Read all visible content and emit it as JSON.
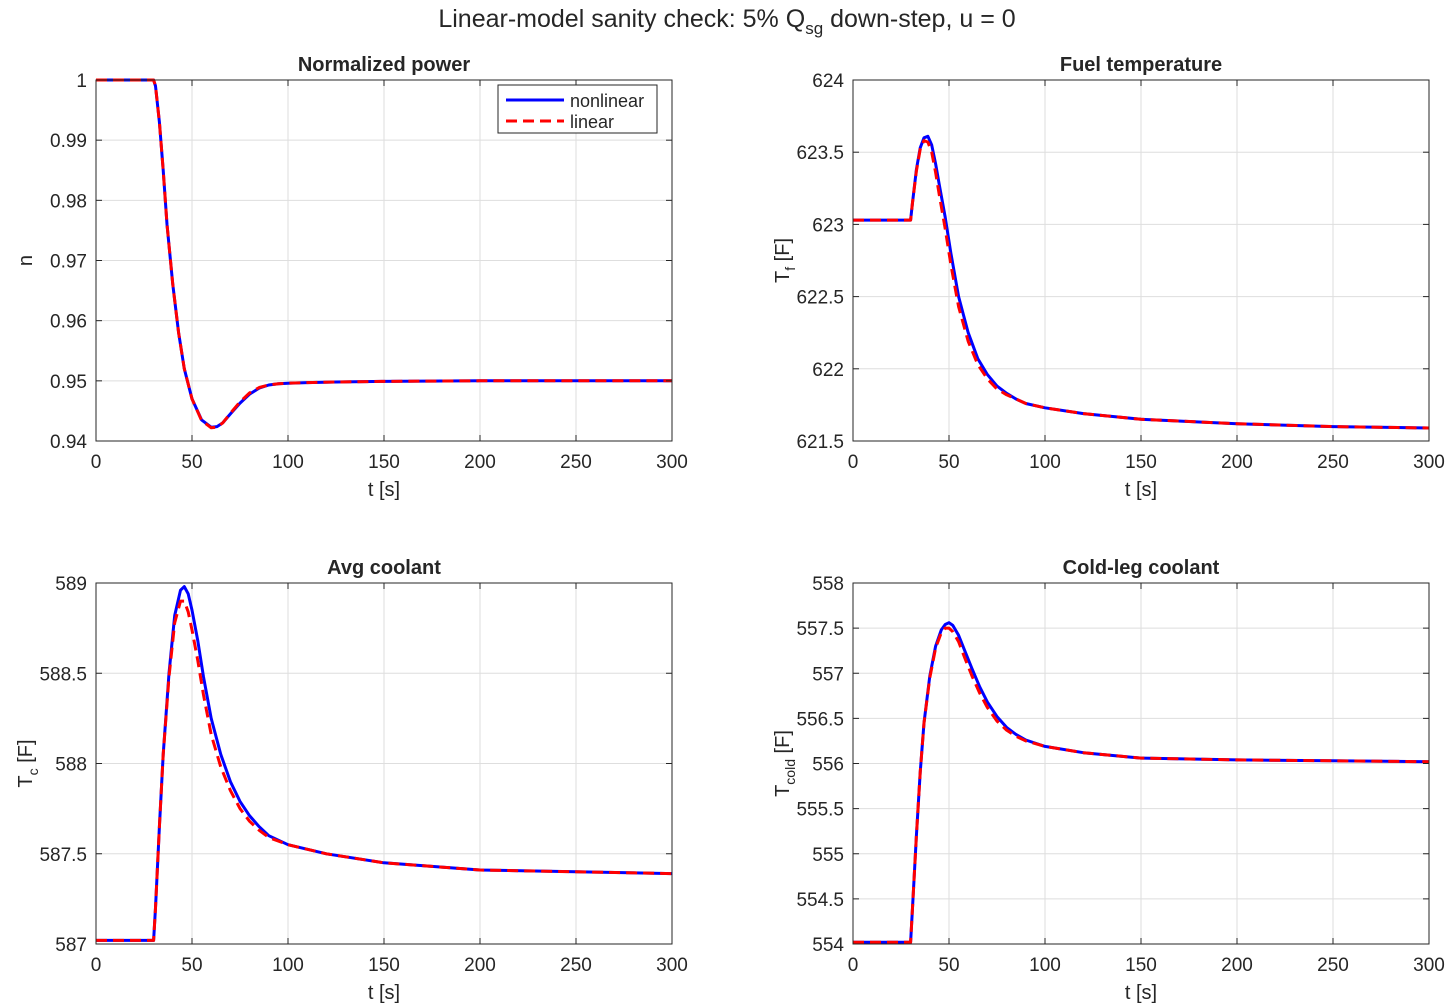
{
  "figure": {
    "title_main": "Linear-model sanity check: 5% Q",
    "title_sub": "sg",
    "title_tail": " down-step, u = 0"
  },
  "colors": {
    "nonlinear": "#0000ff",
    "linear": "#ff0000",
    "grid": "#dedede",
    "axes": "#262626"
  },
  "chart_data": [
    {
      "id": "power",
      "type": "line",
      "title": "Normalized power",
      "xlabel": "t [s]",
      "ylabel": {
        "base": "n",
        "sub": "",
        "unit": ""
      },
      "xlim": [
        0,
        300
      ],
      "ylim": [
        0.94,
        1.0
      ],
      "xticks": [
        0,
        50,
        100,
        150,
        200,
        250,
        300
      ],
      "yticks": [
        0.94,
        0.95,
        0.96,
        0.97,
        0.98,
        0.99,
        1.0
      ],
      "ytick_labels": [
        "0.94",
        "0.95",
        "0.96",
        "0.97",
        "0.98",
        "0.99",
        "1"
      ],
      "grid": true,
      "legend": {
        "position": "top-right",
        "entries": [
          "nonlinear",
          "linear"
        ]
      },
      "series": [
        {
          "name": "nonlinear",
          "style": "solid",
          "x": [
            0,
            30,
            31,
            33,
            35,
            37,
            40,
            43,
            46,
            50,
            55,
            60,
            63,
            66,
            70,
            75,
            80,
            85,
            90,
            95,
            100,
            110,
            125,
            150,
            200,
            250,
            300
          ],
          "y": [
            1.0,
            1.0,
            0.999,
            0.993,
            0.985,
            0.976,
            0.966,
            0.958,
            0.952,
            0.947,
            0.9435,
            0.9423,
            0.9424,
            0.943,
            0.9445,
            0.9463,
            0.9478,
            0.9488,
            0.9493,
            0.9495,
            0.9496,
            0.9497,
            0.9498,
            0.9499,
            0.95,
            0.95,
            0.95
          ]
        },
        {
          "name": "linear",
          "style": "dashed",
          "x": [
            0,
            30,
            31,
            33,
            35,
            37,
            40,
            43,
            46,
            50,
            55,
            60,
            63,
            66,
            70,
            75,
            80,
            85,
            90,
            95,
            100,
            110,
            125,
            150,
            200,
            250,
            300
          ],
          "y": [
            1.0,
            1.0,
            0.999,
            0.993,
            0.985,
            0.976,
            0.966,
            0.958,
            0.952,
            0.947,
            0.9434,
            0.9422,
            0.9423,
            0.943,
            0.9446,
            0.9465,
            0.948,
            0.9489,
            0.9493,
            0.9495,
            0.9496,
            0.9497,
            0.9498,
            0.9499,
            0.95,
            0.95,
            0.95
          ]
        }
      ]
    },
    {
      "id": "fuel",
      "type": "line",
      "title": "Fuel temperature",
      "xlabel": "t [s]",
      "ylabel": {
        "base": "T",
        "sub": "f",
        "unit": " [F]"
      },
      "xlim": [
        0,
        300
      ],
      "ylim": [
        621.5,
        624
      ],
      "xticks": [
        0,
        50,
        100,
        150,
        200,
        250,
        300
      ],
      "yticks": [
        621.5,
        622,
        622.5,
        623,
        623.5,
        624
      ],
      "ytick_labels": [
        "621.5",
        "622",
        "622.5",
        "623",
        "623.5",
        "624"
      ],
      "grid": true,
      "legend": null,
      "series": [
        {
          "name": "nonlinear",
          "style": "solid",
          "x": [
            0,
            30,
            31,
            33,
            35,
            37,
            39,
            41,
            43,
            45,
            48,
            51,
            55,
            60,
            65,
            70,
            75,
            80,
            85,
            90,
            100,
            120,
            150,
            200,
            250,
            300
          ],
          "y": [
            623.03,
            623.03,
            623.15,
            623.38,
            623.53,
            623.6,
            623.61,
            623.55,
            623.42,
            623.27,
            623.05,
            622.8,
            622.5,
            622.25,
            622.07,
            621.96,
            621.88,
            621.83,
            621.79,
            621.76,
            621.73,
            621.69,
            621.65,
            621.62,
            621.6,
            621.59
          ]
        },
        {
          "name": "linear",
          "style": "dashed",
          "x": [
            0,
            30,
            31,
            33,
            35,
            37,
            39,
            41,
            43,
            45,
            48,
            51,
            55,
            60,
            65,
            70,
            75,
            80,
            85,
            90,
            100,
            120,
            150,
            200,
            250,
            300
          ],
          "y": [
            623.03,
            623.03,
            623.15,
            623.37,
            623.52,
            623.58,
            623.57,
            623.5,
            623.36,
            623.2,
            622.97,
            622.72,
            622.43,
            622.19,
            622.03,
            621.93,
            621.86,
            621.82,
            621.79,
            621.76,
            621.73,
            621.69,
            621.65,
            621.62,
            621.6,
            621.59
          ]
        }
      ]
    },
    {
      "id": "avgcool",
      "type": "line",
      "title": "Avg coolant",
      "xlabel": "t [s]",
      "ylabel": {
        "base": "T",
        "sub": "c",
        "unit": " [F]"
      },
      "xlim": [
        0,
        300
      ],
      "ylim": [
        587,
        589
      ],
      "xticks": [
        0,
        50,
        100,
        150,
        200,
        250,
        300
      ],
      "yticks": [
        587,
        587.5,
        588,
        588.5,
        589
      ],
      "ytick_labels": [
        "587",
        "587.5",
        "588",
        "588.5",
        "589"
      ],
      "grid": true,
      "legend": null,
      "series": [
        {
          "name": "nonlinear",
          "style": "solid",
          "x": [
            0,
            30,
            31,
            33,
            35,
            38,
            41,
            44,
            46,
            48,
            50,
            53,
            56,
            60,
            65,
            70,
            75,
            80,
            85,
            90,
            100,
            120,
            150,
            200,
            250,
            300
          ],
          "y": [
            587.02,
            587.02,
            587.2,
            587.65,
            588.05,
            588.5,
            588.82,
            588.96,
            588.98,
            588.94,
            588.85,
            588.68,
            588.48,
            588.25,
            588.05,
            587.9,
            587.79,
            587.71,
            587.65,
            587.6,
            587.55,
            587.5,
            587.45,
            587.41,
            587.4,
            587.39
          ]
        },
        {
          "name": "linear",
          "style": "dashed",
          "x": [
            0,
            30,
            31,
            33,
            35,
            38,
            41,
            44,
            46,
            48,
            50,
            53,
            56,
            60,
            65,
            70,
            75,
            80,
            85,
            90,
            100,
            120,
            150,
            200,
            250,
            300
          ],
          "y": [
            587.02,
            587.02,
            587.2,
            587.65,
            588.05,
            588.48,
            588.78,
            588.9,
            588.9,
            588.84,
            588.74,
            588.57,
            588.38,
            588.16,
            587.98,
            587.85,
            587.75,
            587.68,
            587.63,
            587.59,
            587.55,
            587.5,
            587.45,
            587.41,
            587.4,
            587.39
          ]
        }
      ]
    },
    {
      "id": "coldleg",
      "type": "line",
      "title": "Cold-leg coolant",
      "xlabel": "t [s]",
      "ylabel": {
        "base": "T",
        "sub": "cold",
        "unit": " [F]"
      },
      "xlim": [
        0,
        300
      ],
      "ylim": [
        554,
        558
      ],
      "xticks": [
        0,
        50,
        100,
        150,
        200,
        250,
        300
      ],
      "yticks": [
        554,
        554.5,
        555,
        555.5,
        556,
        556.5,
        557,
        557.5,
        558
      ],
      "ytick_labels": [
        "554",
        "554.5",
        "555",
        "555.5",
        "556",
        "556.5",
        "557",
        "557.5",
        "558"
      ],
      "grid": true,
      "legend": null,
      "series": [
        {
          "name": "nonlinear",
          "style": "solid",
          "x": [
            0,
            30,
            31,
            33,
            35,
            37,
            40,
            43,
            46,
            48,
            50,
            52,
            55,
            58,
            62,
            66,
            70,
            75,
            80,
            85,
            90,
            100,
            120,
            150,
            200,
            250,
            300
          ],
          "y": [
            554.02,
            554.02,
            554.4,
            555.2,
            555.9,
            556.45,
            556.97,
            557.3,
            557.48,
            557.54,
            557.56,
            557.53,
            557.42,
            557.26,
            557.05,
            556.85,
            556.68,
            556.52,
            556.4,
            556.32,
            556.26,
            556.19,
            556.12,
            556.06,
            556.04,
            556.03,
            556.02
          ]
        },
        {
          "name": "linear",
          "style": "dashed",
          "x": [
            0,
            30,
            31,
            33,
            35,
            37,
            40,
            43,
            46,
            48,
            50,
            52,
            55,
            58,
            62,
            66,
            70,
            75,
            80,
            85,
            90,
            100,
            120,
            150,
            200,
            250,
            300
          ],
          "y": [
            554.02,
            554.02,
            554.4,
            555.2,
            555.9,
            556.45,
            556.95,
            557.28,
            557.45,
            557.5,
            557.5,
            557.46,
            557.35,
            557.18,
            556.97,
            556.78,
            556.62,
            556.47,
            556.37,
            556.3,
            556.25,
            556.19,
            556.12,
            556.06,
            556.04,
            556.03,
            556.02
          ]
        }
      ]
    }
  ]
}
